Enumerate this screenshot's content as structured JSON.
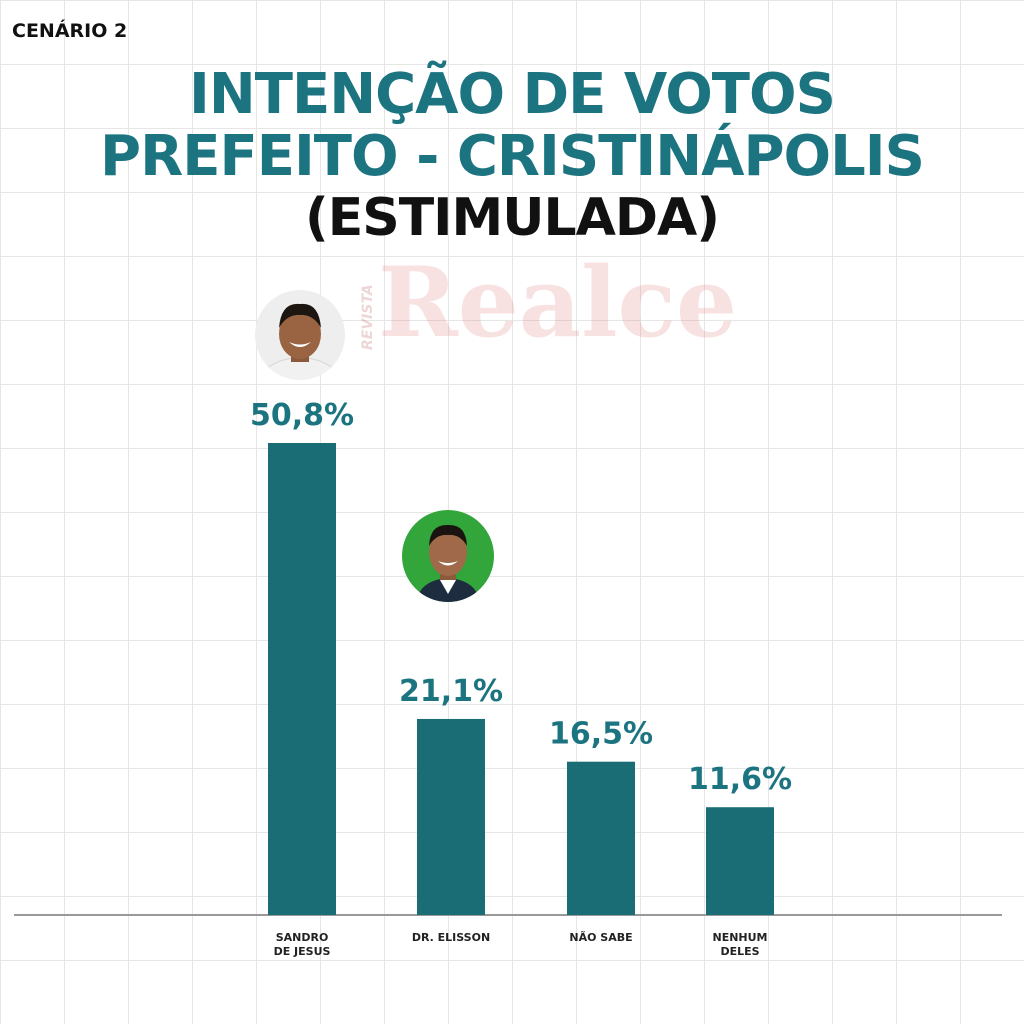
{
  "scenario_label": "CENÁRIO 2",
  "title_line1": "INTENÇÃO DE VOTOS",
  "title_line2": "PREFEITO - CRISTINÁPOLIS",
  "title_line3": "(ESTIMULADA)",
  "watermark": {
    "small": "REVISTA",
    "big": "Realce"
  },
  "colors": {
    "title_accent": "#1b7480",
    "bar": "#1a6c75",
    "value_label": "#1b7480",
    "axis": "#999999"
  },
  "chart_data": {
    "type": "bar",
    "categories": [
      [
        "SANDRO",
        "DE JESUS"
      ],
      [
        "DR. ELISSON"
      ],
      [
        "NÃO SABE"
      ],
      [
        "NENHUM",
        "DELES"
      ]
    ],
    "values": [
      50.8,
      21.1,
      16.5,
      11.6
    ],
    "value_labels": [
      "50,8%",
      "21,1%",
      "16,5%",
      "11,6%"
    ],
    "ylim": [
      0,
      50.8
    ],
    "grid": false,
    "title": "INTENÇÃO DE VOTOS PREFEITO - CRISTINÁPOLIS (ESTIMULADA)",
    "xlabel": "",
    "ylabel": ""
  }
}
